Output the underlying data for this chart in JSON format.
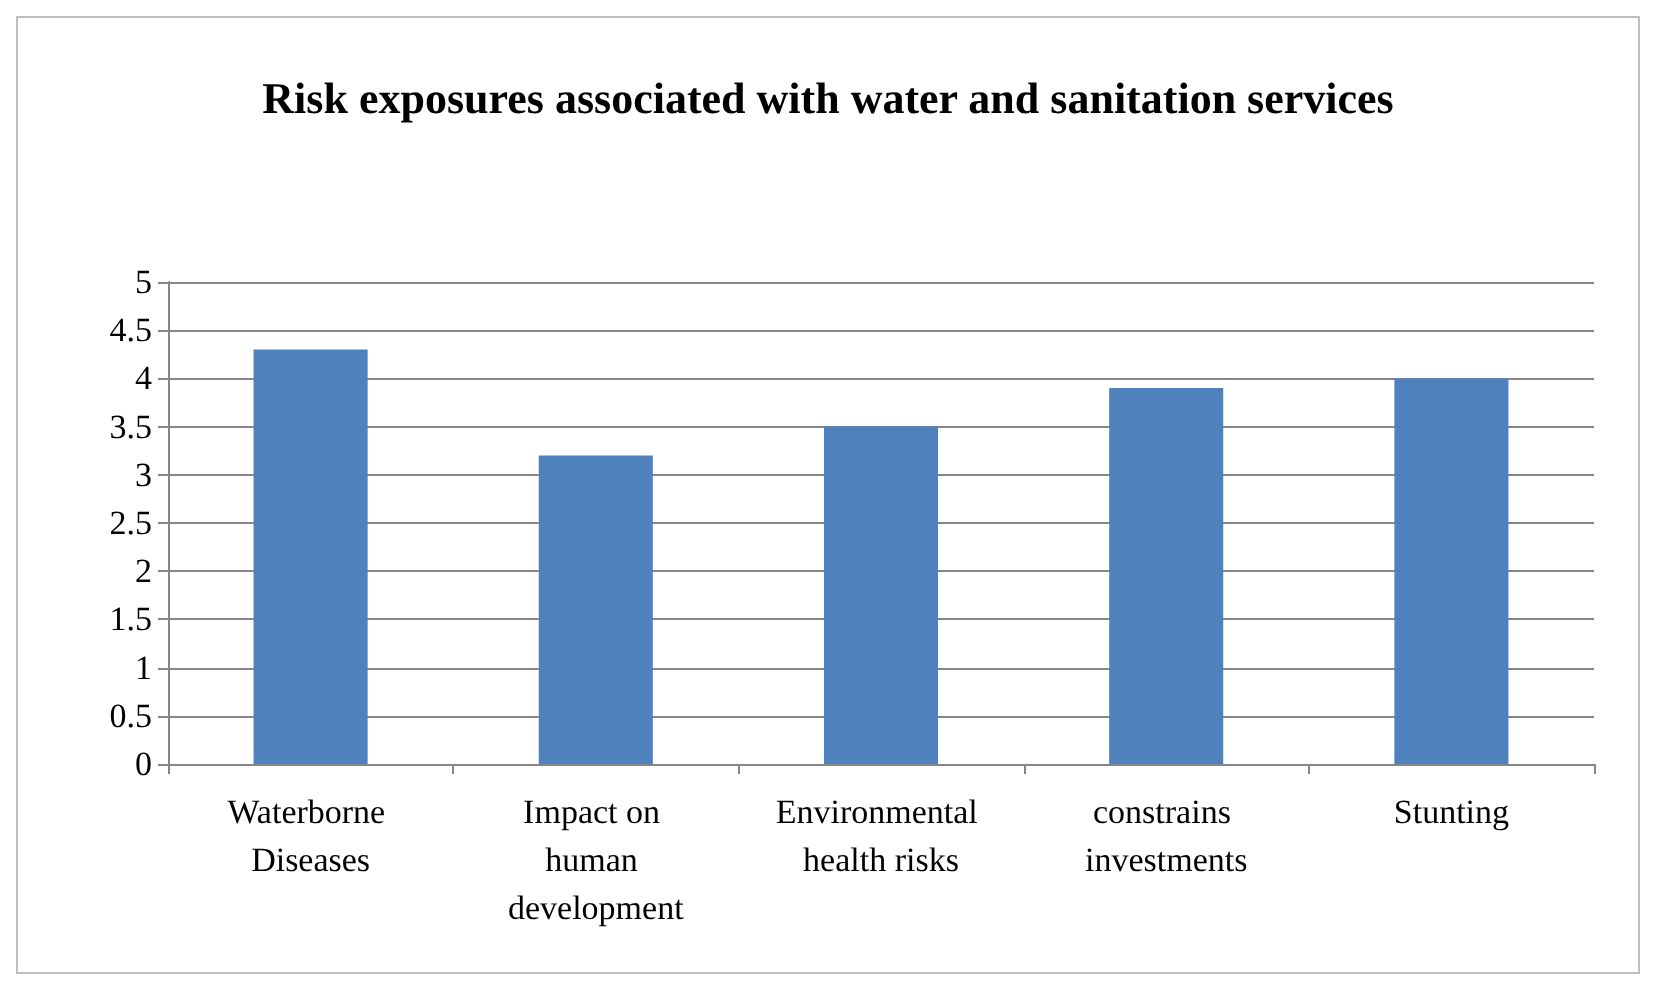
{
  "chart_data": {
    "type": "bar",
    "title": "Risk exposures associated with water and sanitation services",
    "categories": [
      "Waterborne Diseases",
      "Impact on human development",
      "Environmental health risks",
      "constrains investments",
      "Stunting"
    ],
    "values": [
      4.3,
      3.2,
      3.5,
      3.9,
      4.0
    ],
    "color": "#4f81bd",
    "ylim": [
      0,
      5
    ],
    "yticks": [
      0,
      0.5,
      1,
      1.5,
      2,
      2.5,
      3,
      3.5,
      4,
      4.5,
      5
    ],
    "grid": "y"
  }
}
